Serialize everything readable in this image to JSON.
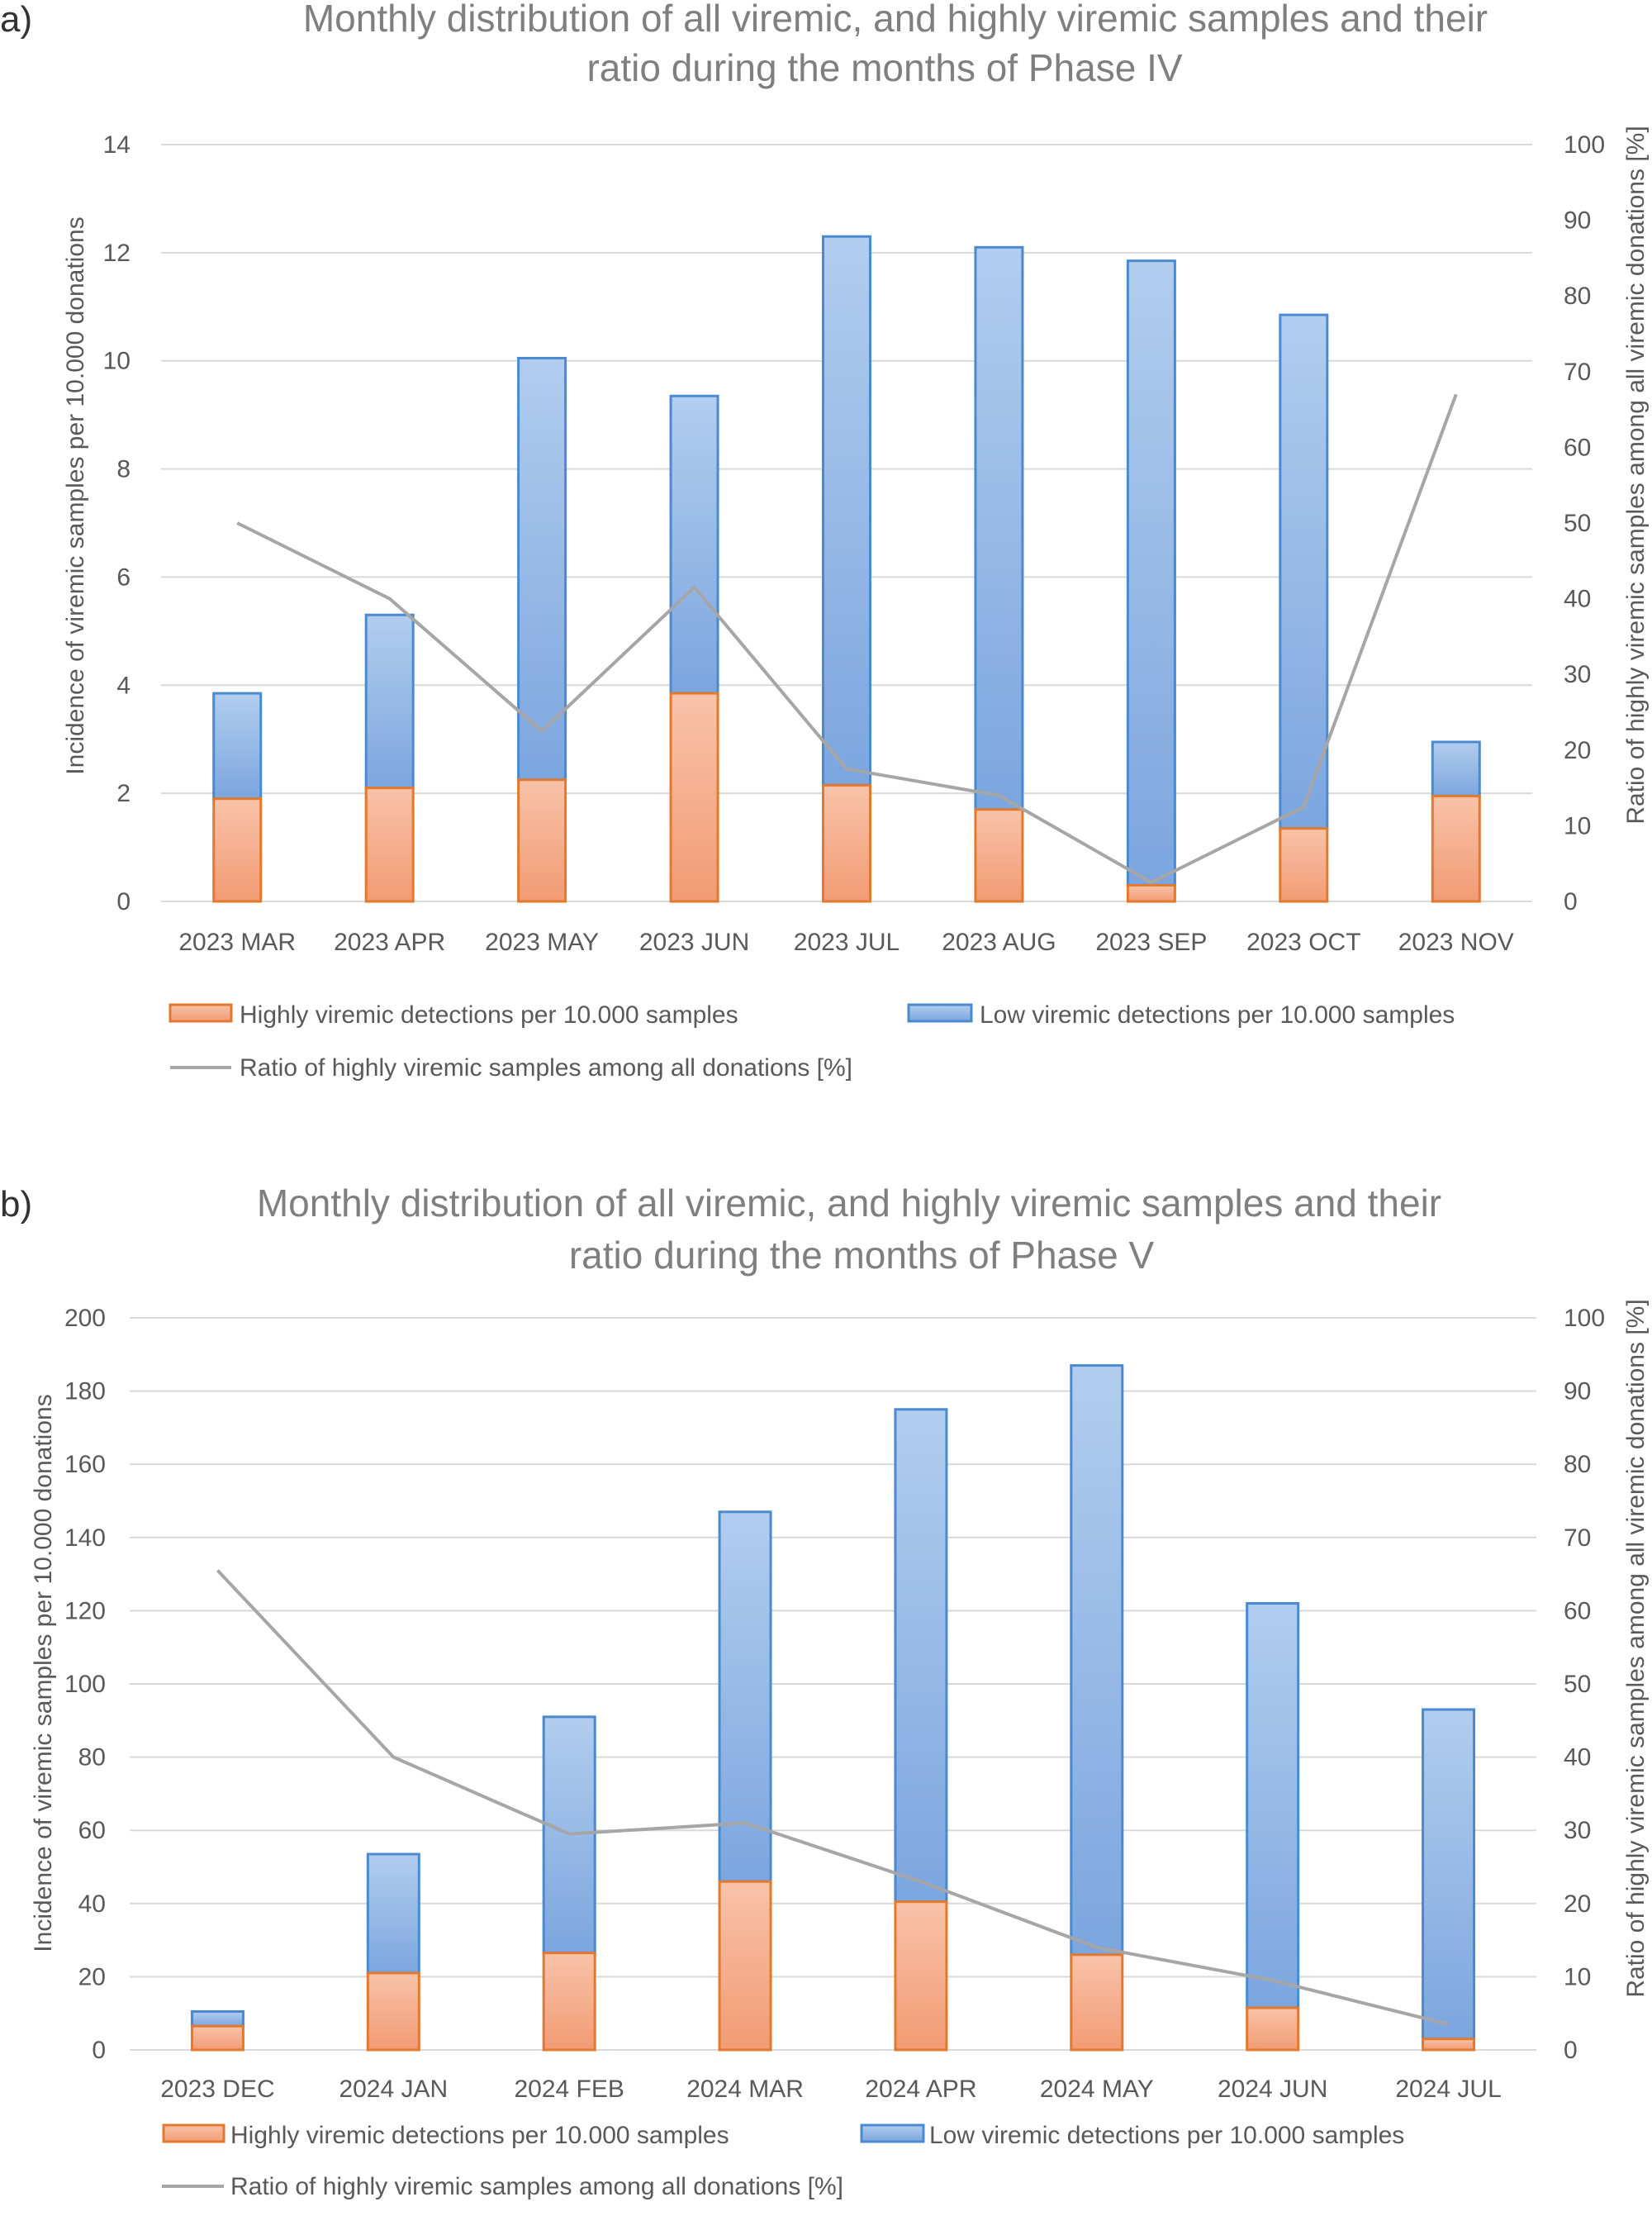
{
  "chart_data": [
    {
      "type": "bar",
      "stacked": true,
      "panel_label": "a)",
      "title_lines": [
        "Monthly distribution of all viremic, and highly viremic samples and their",
        "ratio during the months of Phase IV"
      ],
      "categories": [
        "2023 MAR",
        "2023 APR",
        "2023 MAY",
        "2023 JUN",
        "2023 JUL",
        "2023 AUG",
        "2023 SEP",
        "2023 OCT",
        "2023 NOV"
      ],
      "series": [
        {
          "name": "Highly viremic detections per 10.000 samples",
          "axis": "left",
          "kind": "bar",
          "values": [
            1.9,
            2.1,
            2.25,
            3.85,
            2.15,
            1.7,
            0.3,
            1.35,
            1.95
          ]
        },
        {
          "name": "Low viremic detections per 10.000 samples",
          "axis": "left",
          "kind": "bar",
          "values": [
            1.95,
            3.2,
            7.8,
            5.5,
            10.15,
            10.4,
            11.55,
            9.5,
            1.0
          ]
        },
        {
          "name": "Ratio of highly viremic samples among all donations [%]",
          "axis": "right",
          "kind": "line",
          "values": [
            50,
            40,
            22.5,
            41.5,
            17.5,
            14,
            2.5,
            12.5,
            67
          ]
        }
      ],
      "ylabel": "Incidence of viremic samples per 10.000 donations",
      "y2label": "Ratio of highly viremic samples among all viremic donations [%]",
      "ylim": [
        0,
        14
      ],
      "yticks": [
        0,
        2,
        4,
        6,
        8,
        10,
        12,
        14
      ],
      "y2lim": [
        0,
        100
      ],
      "y2ticks": [
        0,
        10,
        20,
        30,
        40,
        50,
        60,
        70,
        80,
        90,
        100
      ],
      "grid": true,
      "legend_position": "bottom"
    },
    {
      "type": "bar",
      "stacked": true,
      "panel_label": "b)",
      "title_lines": [
        "Monthly distribution of all viremic, and highly viremic samples and their",
        "ratio during the months of Phase V"
      ],
      "categories": [
        "2023 DEC",
        "2024 JAN",
        "2024 FEB",
        "2024 MAR",
        "2024 APR",
        "2024 MAY",
        "2024 JUN",
        "2024 JUL"
      ],
      "series": [
        {
          "name": "Highly viremic detections per 10.000 samples",
          "axis": "left",
          "kind": "bar",
          "values": [
            6.5,
            21,
            26.5,
            46,
            40.5,
            26,
            11.5,
            3
          ]
        },
        {
          "name": "Low viremic detections per 10.000 samples",
          "axis": "left",
          "kind": "bar",
          "values": [
            4,
            32.5,
            64.5,
            101,
            134.5,
            161,
            110.5,
            90
          ]
        },
        {
          "name": "Ratio of highly viremic samples among all donations [%]",
          "axis": "right",
          "kind": "line",
          "values": [
            65.5,
            40,
            29.5,
            31,
            23,
            14,
            9.5,
            3.5
          ]
        }
      ],
      "ylabel": "Incidence of viremic samples per 10.000 donations",
      "y2label": "Ratio of highly viremic samples among all viremic donations [%]",
      "ylim": [
        0,
        200
      ],
      "yticks": [
        0,
        20,
        40,
        60,
        80,
        100,
        120,
        140,
        160,
        180,
        200
      ],
      "y2lim": [
        0,
        100
      ],
      "y2ticks": [
        0,
        10,
        20,
        30,
        40,
        50,
        60,
        70,
        80,
        90,
        100
      ],
      "grid": true,
      "legend_position": "bottom"
    }
  ],
  "colors": {
    "highly_viremic": "#f4a582",
    "highly_viremic_border": "#e2792f",
    "low_viremic": "#8fb4e3",
    "low_viremic_border": "#4a8ad0",
    "ratio_line": "#a6a6a6"
  }
}
